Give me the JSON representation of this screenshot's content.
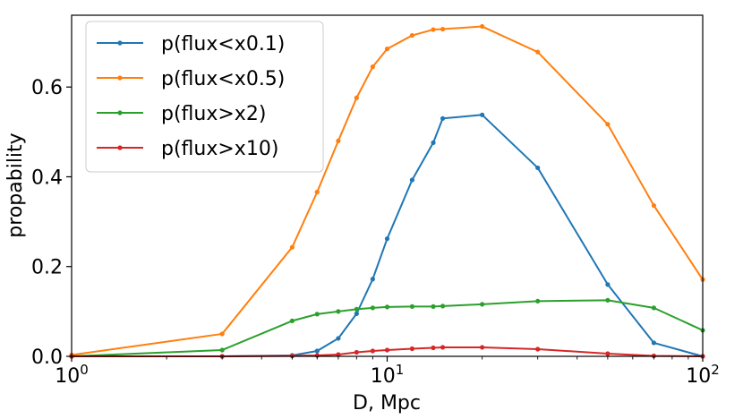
{
  "chart_data": {
    "type": "line",
    "xscale": "log",
    "xlim": [
      1,
      100
    ],
    "ylim": [
      0,
      0.76
    ],
    "xlabel": "D, Mpc",
    "ylabel": "propability",
    "x_ticks": [
      {
        "value": 1,
        "base": "10",
        "exp": "0"
      },
      {
        "value": 10,
        "base": "10",
        "exp": "1"
      },
      {
        "value": 100,
        "base": "10",
        "exp": "2"
      }
    ],
    "y_ticks": [
      {
        "value": 0.0,
        "label": "0.0"
      },
      {
        "value": 0.2,
        "label": "0.2"
      },
      {
        "value": 0.4,
        "label": "0.4"
      },
      {
        "value": 0.6,
        "label": "0.6"
      }
    ],
    "legend_position": "top-left",
    "grid": false,
    "series": [
      {
        "name": "p(flux<x0.1)",
        "color": "#1f77b4",
        "x": [
          1,
          3,
          5,
          6,
          7,
          8,
          9,
          10,
          12,
          14,
          15,
          20,
          30,
          50,
          70,
          100
        ],
        "y": [
          0.0,
          0.0,
          0.002,
          0.012,
          0.04,
          0.095,
          0.172,
          0.262,
          0.393,
          0.476,
          0.53,
          0.538,
          0.42,
          0.16,
          0.03,
          0.0
        ]
      },
      {
        "name": "p(flux<x0.5)",
        "color": "#ff7f0e",
        "x": [
          1,
          3,
          5,
          6,
          7,
          8,
          9,
          10,
          12,
          14,
          15,
          20,
          30,
          50,
          70,
          100
        ],
        "y": [
          0.003,
          0.05,
          0.243,
          0.366,
          0.48,
          0.576,
          0.645,
          0.685,
          0.715,
          0.728,
          0.729,
          0.735,
          0.678,
          0.517,
          0.336,
          0.171
        ]
      },
      {
        "name": "p(flux>x2)",
        "color": "#2ca02c",
        "x": [
          1,
          3,
          5,
          6,
          7,
          8,
          9,
          10,
          12,
          14,
          15,
          20,
          30,
          50,
          70,
          100
        ],
        "y": [
          0.0,
          0.014,
          0.079,
          0.094,
          0.1,
          0.105,
          0.108,
          0.11,
          0.111,
          0.111,
          0.112,
          0.116,
          0.123,
          0.125,
          0.108,
          0.058
        ]
      },
      {
        "name": "p(flux>x10)",
        "color": "#d62728",
        "x": [
          1,
          3,
          5,
          6,
          7,
          8,
          9,
          10,
          12,
          14,
          15,
          20,
          30,
          50,
          70,
          100
        ],
        "y": [
          0.0,
          0.0,
          0.001,
          0.002,
          0.004,
          0.009,
          0.012,
          0.014,
          0.017,
          0.019,
          0.02,
          0.02,
          0.016,
          0.006,
          0.001,
          0.0
        ]
      }
    ]
  }
}
